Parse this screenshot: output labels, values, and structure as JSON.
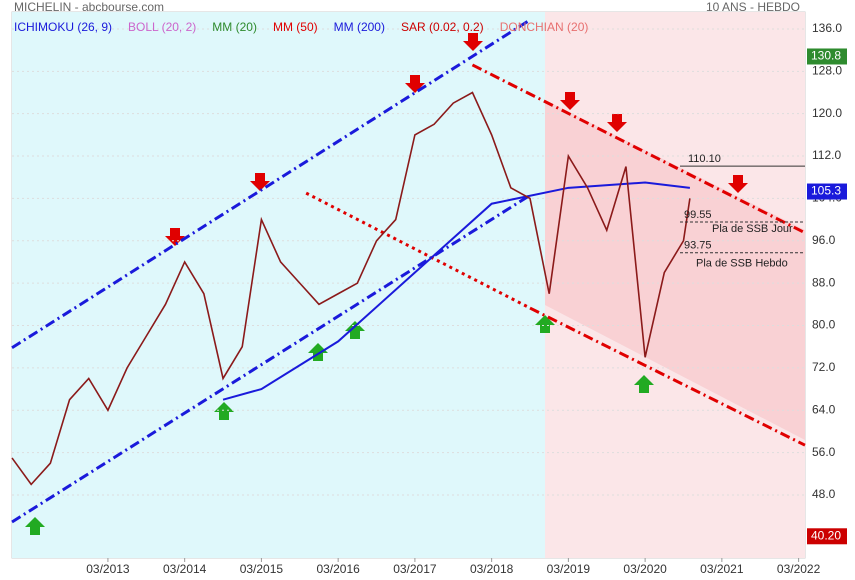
{
  "chart_data": {
    "type": "line",
    "title": "MICHELIN - abcbourse.com",
    "subtitle": "10 ANS - HEBDO",
    "indicators": [
      {
        "label": "ICHIMOKU (26, 9)",
        "color": "#1a1adb"
      },
      {
        "label": "BOLL (20, 2)",
        "color": "#cc66cc"
      },
      {
        "label": "MM (20)",
        "color": "#2e8b2e"
      },
      {
        "label": "MM (50)",
        "color": "#e00000"
      },
      {
        "label": "MM (200)",
        "color": "#1a1adb"
      },
      {
        "label": "SAR (0.02, 0.2)",
        "color": "#cc0000"
      },
      {
        "label": "DONCHIAN (20)",
        "color": "#e87070"
      }
    ],
    "x": [
      "12/2011",
      "03/2012",
      "06/2012",
      "09/2012",
      "12/2012",
      "03/2013",
      "06/2013",
      "09/2013",
      "12/2013",
      "03/2014",
      "06/2014",
      "09/2014",
      "12/2014",
      "03/2015",
      "06/2015",
      "09/2015",
      "12/2015",
      "03/2016",
      "06/2016",
      "09/2016",
      "12/2016",
      "03/2017",
      "06/2017",
      "09/2017",
      "12/2017",
      "03/2018",
      "06/2018",
      "09/2018",
      "12/2018",
      "03/2019",
      "06/2019",
      "09/2019",
      "12/2019",
      "03/2020",
      "06/2020",
      "09/2020",
      "10/2020"
    ],
    "values": [
      55,
      50,
      54,
      66,
      70,
      64,
      72,
      78,
      84,
      92,
      86,
      70,
      76,
      100,
      92,
      88,
      84,
      86,
      88,
      96,
      100,
      116,
      118,
      122,
      124,
      116,
      106,
      104,
      86,
      112,
      106,
      98,
      110,
      74,
      90,
      96,
      104
    ],
    "color": "#8b1a1a",
    "ma200": {
      "x": [
        "09/2014",
        "03/2015",
        "03/2016",
        "03/2017",
        "03/2018",
        "03/2019",
        "03/2020",
        "10/2020"
      ],
      "values": [
        66,
        68,
        77,
        90,
        103,
        106,
        107,
        106
      ],
      "color": "#1a1adb"
    },
    "trendlines": [
      {
        "x": [
          "12/2011",
          "09/2018"
        ],
        "values": [
          75.8,
          137.7
        ],
        "color": "#1a1adb"
      },
      {
        "x": [
          "12/2011",
          "09/2018"
        ],
        "values": [
          42.9,
          104.6
        ],
        "color": "#1a1adb"
      },
      {
        "x": [
          "12/2017",
          "04/2022"
        ],
        "values": [
          129.2,
          97.5
        ],
        "color": "#e00000"
      },
      {
        "x": [
          "09/2018",
          "04/2022"
        ],
        "values": [
          83.3,
          57.4
        ],
        "color": "#e00000"
      },
      {
        "x": [
          "10/2015",
          "09/2018"
        ],
        "values": [
          105,
          83.3
        ],
        "color": "#e00000"
      }
    ],
    "xlim": [
      "12/2011",
      "04/2022"
    ],
    "xticks": [
      "03/2013",
      "03/2014",
      "03/2015",
      "03/2016",
      "03/2017",
      "03/2018",
      "03/2019",
      "03/2020",
      "03/2021",
      "03/2022"
    ],
    "ylim": [
      36.1,
      139.2
    ],
    "yticks": [
      {
        "value": 48,
        "label": "48.0"
      },
      {
        "value": 56,
        "label": "56.0"
      },
      {
        "value": 64,
        "label": "64.0"
      },
      {
        "value": 72,
        "label": "72.0"
      },
      {
        "value": 80,
        "label": "80.0"
      },
      {
        "value": 88,
        "label": "88.0"
      },
      {
        "value": 96,
        "label": "96.0"
      },
      {
        "value": 104,
        "label": "104.0"
      },
      {
        "value": 112,
        "label": "112.0"
      },
      {
        "value": 120,
        "label": "120.0"
      },
      {
        "value": 128,
        "label": "128.0"
      },
      {
        "value": 136,
        "label": "136.0"
      }
    ],
    "price_tags": [
      {
        "value": 130.8,
        "label": "130.8",
        "color": "#2e8b2e"
      },
      {
        "value": 105.3,
        "label": "105.3",
        "color": "#1a1adb"
      },
      {
        "value": 40.2,
        "label": "40.20",
        "color": "#cc0000"
      }
    ],
    "levels": [
      {
        "value": 110.1,
        "label": "110.10"
      },
      {
        "value": 99.55,
        "label": "99.55",
        "text": "Pla de SSB Jour"
      },
      {
        "value": 93.75,
        "label": "93.75",
        "text": "Pla de SSB Hebdo"
      }
    ]
  }
}
